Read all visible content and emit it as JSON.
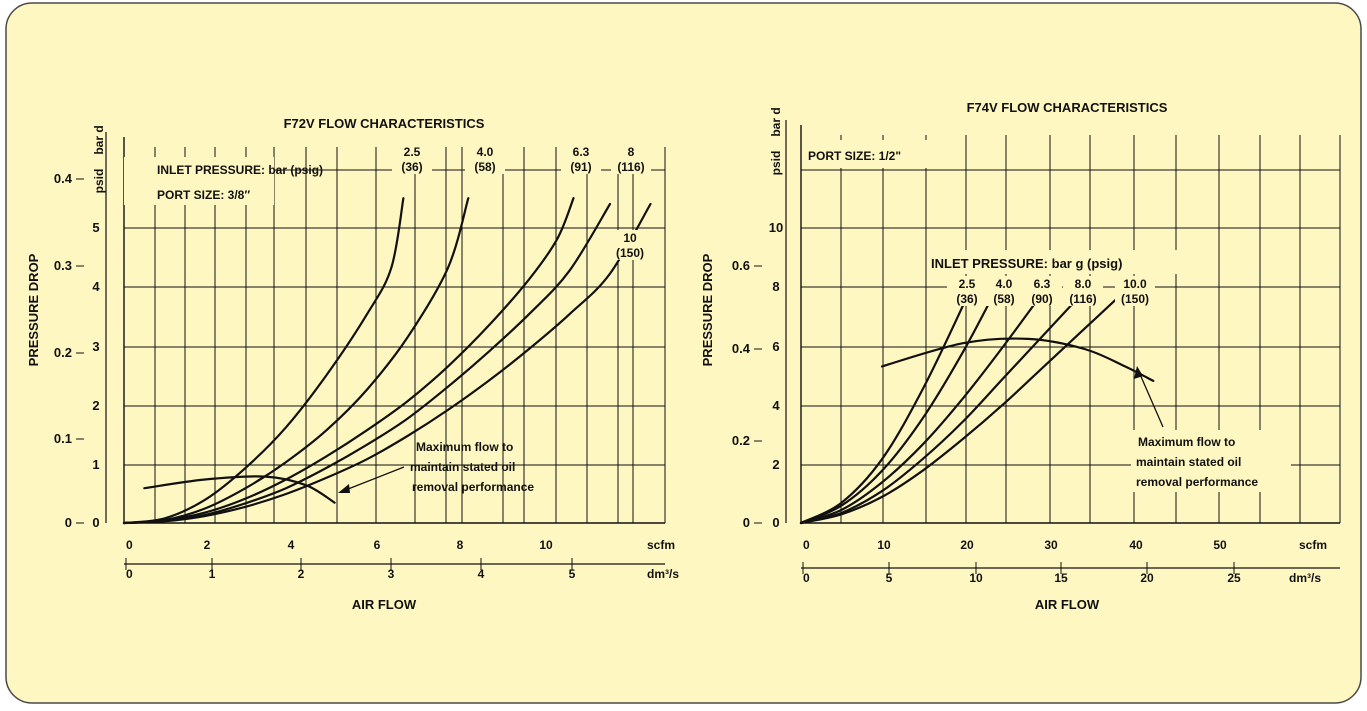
{
  "colors": {
    "panel_background": "#FFF7C2",
    "panel_border": "#4a4a4a",
    "ink": "#111111"
  },
  "chart_data": [
    {
      "type": "line",
      "title": "F72V FLOW CHARACTERISTICS",
      "ylabel": "PRESSURE DROP",
      "xlabel": "AIR FLOW",
      "y_units": [
        "bar d",
        "psid"
      ],
      "x_units": [
        "scfm",
        "dm³/s"
      ],
      "notes": [
        "INLET PRESSURE: bar (psig)",
        "PORT SIZE: 3/8″"
      ],
      "annotation": [
        "Maximum flow to",
        "maintain stated oil",
        "removal performance"
      ],
      "psid_ticks": [
        "0",
        "1",
        "2",
        "3",
        "4",
        "5"
      ],
      "bar_ticks": [
        "0",
        "0.1",
        "0.2",
        "0.3",
        "0.4"
      ],
      "scfm_ticks": [
        "0",
        "2",
        "4",
        "6",
        "8",
        "10"
      ],
      "dm3s_ticks": [
        "0",
        "1",
        "2",
        "3",
        "4",
        "5"
      ],
      "ylim_psid": [
        0,
        5.5
      ],
      "xlim_scfm": [
        0,
        13
      ],
      "grid": true,
      "series": [
        {
          "name": "2.5 (36)",
          "label_top": "2.5",
          "label_bottom": "(36)",
          "x": [
            0,
            1,
            2,
            3,
            4,
            5,
            6,
            6.6,
            6.9
          ],
          "y": [
            0,
            0.08,
            0.4,
            0.95,
            1.65,
            2.55,
            3.6,
            4.4,
            5.6
          ]
        },
        {
          "name": "4.0 (58)",
          "label_top": "4.0",
          "label_bottom": "(58)",
          "x": [
            0,
            1,
            2,
            3,
            4,
            5,
            6,
            7,
            8,
            8.5
          ],
          "y": [
            0,
            0.05,
            0.25,
            0.6,
            1.05,
            1.6,
            2.3,
            3.2,
            4.4,
            5.6
          ]
        },
        {
          "name": "6.3 (91)",
          "label_top": "6.3",
          "label_bottom": "(91)",
          "x": [
            0,
            1,
            2,
            3,
            4,
            5,
            6,
            7,
            8,
            9,
            10,
            10.7,
            11.1
          ],
          "y": [
            0,
            0.04,
            0.18,
            0.42,
            0.75,
            1.15,
            1.6,
            2.1,
            2.7,
            3.4,
            4.2,
            4.9,
            5.6
          ]
        },
        {
          "name": "8 (116)",
          "label_top": "8",
          "label_bottom": "(116)",
          "x": [
            0,
            1,
            2,
            3,
            4,
            5,
            6,
            7,
            8,
            9,
            10,
            11,
            12
          ],
          "y": [
            0,
            0.04,
            0.14,
            0.34,
            0.6,
            0.95,
            1.35,
            1.8,
            2.35,
            2.95,
            3.6,
            4.35,
            5.5
          ]
        },
        {
          "name": "10 (150)",
          "label_top": "10",
          "label_bottom": "(150)",
          "x": [
            0,
            1,
            2,
            3,
            4,
            5,
            6,
            7,
            8,
            9,
            10,
            11,
            12,
            13
          ],
          "y": [
            0,
            0.03,
            0.12,
            0.28,
            0.5,
            0.78,
            1.1,
            1.5,
            1.95,
            2.45,
            3.0,
            3.6,
            4.3,
            5.5
          ]
        },
        {
          "name": "Maximum flow",
          "x": [
            0.5,
            2,
            3.5,
            4.5,
            5.2
          ],
          "y": [
            0.6,
            0.75,
            0.8,
            0.65,
            0.35
          ]
        }
      ]
    },
    {
      "type": "line",
      "title": "F74V FLOW CHARACTERISTICS",
      "ylabel": "PRESSURE DROP",
      "xlabel": "AIR FLOW",
      "y_units": [
        "bar d",
        "psid"
      ],
      "x_units": [
        "scfm",
        "dm³/s"
      ],
      "notes": [
        "PORT SIZE: 1/2\"",
        "INLET PRESSURE: bar g (psig)"
      ],
      "annotation": [
        "Maximum flow to",
        "maintain stated oil",
        "removal performance"
      ],
      "psid_ticks": [
        "0",
        "2",
        "4",
        "6",
        "8",
        "10"
      ],
      "bar_ticks": [
        "0",
        "0.2",
        "0.4",
        "0.6"
      ],
      "scfm_ticks": [
        "0",
        "10",
        "20",
        "30",
        "40",
        "50"
      ],
      "dm3s_ticks": [
        "0",
        "5",
        "10",
        "15",
        "20",
        "25"
      ],
      "ylim_psid": [
        0,
        11.5
      ],
      "xlim_scfm": [
        0,
        60
      ],
      "grid": true,
      "series": [
        {
          "name": "2.5 (36)",
          "label_top": "2.5",
          "label_bottom": "(36)",
          "x": [
            0,
            5,
            10,
            15,
            20,
            21
          ],
          "y": [
            0,
            0.7,
            2.2,
            4.6,
            7.5,
            8.2
          ]
        },
        {
          "name": "4.0 (58)",
          "label_top": "4.0",
          "label_bottom": "(58)",
          "x": [
            0,
            5,
            10,
            15,
            20,
            24
          ],
          "y": [
            0,
            0.6,
            1.8,
            3.6,
            5.9,
            8.0
          ]
        },
        {
          "name": "6.3 (90)",
          "label_top": "6.3",
          "label_bottom": "(90)",
          "x": [
            0,
            5,
            10,
            15,
            20,
            25,
            30
          ],
          "y": [
            0,
            0.45,
            1.4,
            2.7,
            4.3,
            6.1,
            8.0
          ]
        },
        {
          "name": "8.0 (116)",
          "label_top": "8.0",
          "label_bottom": "(116)",
          "x": [
            0,
            5,
            10,
            15,
            20,
            25,
            30,
            35
          ],
          "y": [
            0,
            0.35,
            1.1,
            2.2,
            3.5,
            5.0,
            6.5,
            8.0
          ]
        },
        {
          "name": "10.0 (150)",
          "label_top": "10.0",
          "label_bottom": "(150)",
          "x": [
            0,
            5,
            10,
            15,
            20,
            25,
            30,
            35,
            40
          ],
          "y": [
            0,
            0.3,
            0.9,
            1.8,
            2.9,
            4.1,
            5.4,
            6.7,
            8.0
          ]
        },
        {
          "name": "Maximum flow",
          "x": [
            10,
            20,
            28,
            35,
            40,
            43.5
          ],
          "y": [
            5.4,
            6.2,
            6.35,
            6.0,
            5.4,
            4.9
          ]
        }
      ]
    }
  ]
}
